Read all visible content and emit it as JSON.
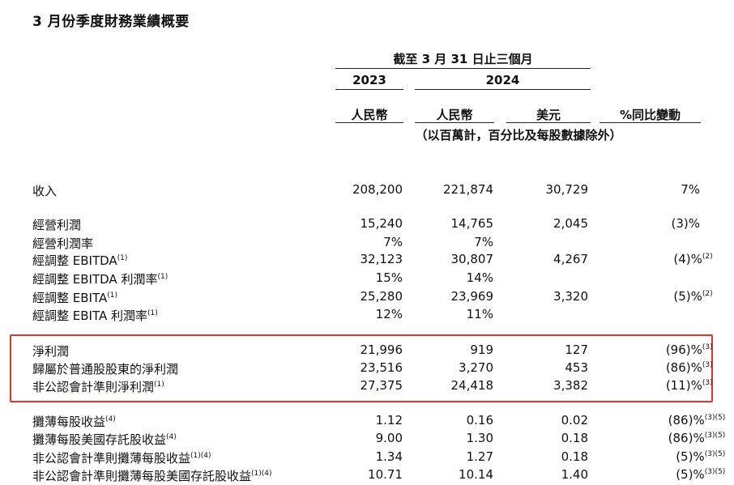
{
  "title": "3 月份季度財務業績概要",
  "header": {
    "period": "截至 3 月 31 日止三個月",
    "year_2023": "2023",
    "year_2024": "2024",
    "col_rmb_2023": "人民幣",
    "col_rmb_2024": "人民幣",
    "col_usd": "美元",
    "col_yoy": "%同比變動",
    "unit_note": "（以百萬計，百分比及每股數據除外）"
  },
  "rows": [
    {
      "label": "收入",
      "label_sup": "",
      "v2023": "208,200",
      "v2024": "221,874",
      "usd": "30,729",
      "yoy": "7%",
      "yoy_sup": ""
    },
    {
      "label": "經營利潤",
      "label_sup": "",
      "v2023": "15,240",
      "v2024": "14,765",
      "usd": "2,045",
      "yoy": "(3)%",
      "yoy_sup": ""
    },
    {
      "label": "經營利潤率",
      "label_sup": "",
      "v2023": "7%",
      "v2024": "7%",
      "usd": "",
      "yoy": "",
      "yoy_sup": ""
    },
    {
      "label": "經調整 EBITDA",
      "label_sup": "(1)",
      "v2023": "32,123",
      "v2024": "30,807",
      "usd": "4,267",
      "yoy": "(4)%",
      "yoy_sup": "(2)"
    },
    {
      "label": "經調整 EBITDA 利潤率",
      "label_sup": "(1)",
      "v2023": "15%",
      "v2024": "14%",
      "usd": "",
      "yoy": "",
      "yoy_sup": ""
    },
    {
      "label": "經調整 EBITA",
      "label_sup": "(1)",
      "v2023": "25,280",
      "v2024": "23,969",
      "usd": "3,320",
      "yoy": "(5)%",
      "yoy_sup": "(2)"
    },
    {
      "label": "經調整 EBITA 利潤率",
      "label_sup": "(1)",
      "v2023": "12%",
      "v2024": "11%",
      "usd": "",
      "yoy": "",
      "yoy_sup": ""
    },
    {
      "label": "淨利潤",
      "label_sup": "",
      "v2023": "21,996",
      "v2024": "919",
      "usd": "127",
      "yoy": "(96)%",
      "yoy_sup": "(3)"
    },
    {
      "label": "歸屬於普通股股東的淨利潤",
      "label_sup": "",
      "v2023": "23,516",
      "v2024": "3,270",
      "usd": "453",
      "yoy": "(86)%",
      "yoy_sup": "(3)"
    },
    {
      "label": "非公認會計準則淨利潤",
      "label_sup": "(1)",
      "v2023": "27,375",
      "v2024": "24,418",
      "usd": "3,382",
      "yoy": "(11)%",
      "yoy_sup": "(3)"
    },
    {
      "label": "攤薄每股收益",
      "label_sup": "(4)",
      "v2023": "1.12",
      "v2024": "0.16",
      "usd": "0.02",
      "yoy": "(86)%",
      "yoy_sup": "(3)(5)"
    },
    {
      "label": "攤薄每股美國存託股收益",
      "label_sup": "(4)",
      "v2023": "9.00",
      "v2024": "1.30",
      "usd": "0.18",
      "yoy": "(86)%",
      "yoy_sup": "(3)(5)"
    },
    {
      "label": "非公認會計準則攤薄每股收益",
      "label_sup": "(1)(4)",
      "v2023": "1.34",
      "v2024": "1.27",
      "usd": "0.18",
      "yoy": "(5)%",
      "yoy_sup": "(3)(5)"
    },
    {
      "label": "非公認會計準則攤薄每股美國存託股收益",
      "label_sup": "(1)(4)",
      "v2023": "10.71",
      "v2024": "10.14",
      "usd": "1.40",
      "yoy": "(5)%",
      "yoy_sup": "(3)(5)"
    }
  ],
  "highlight_color": "#e5332a"
}
